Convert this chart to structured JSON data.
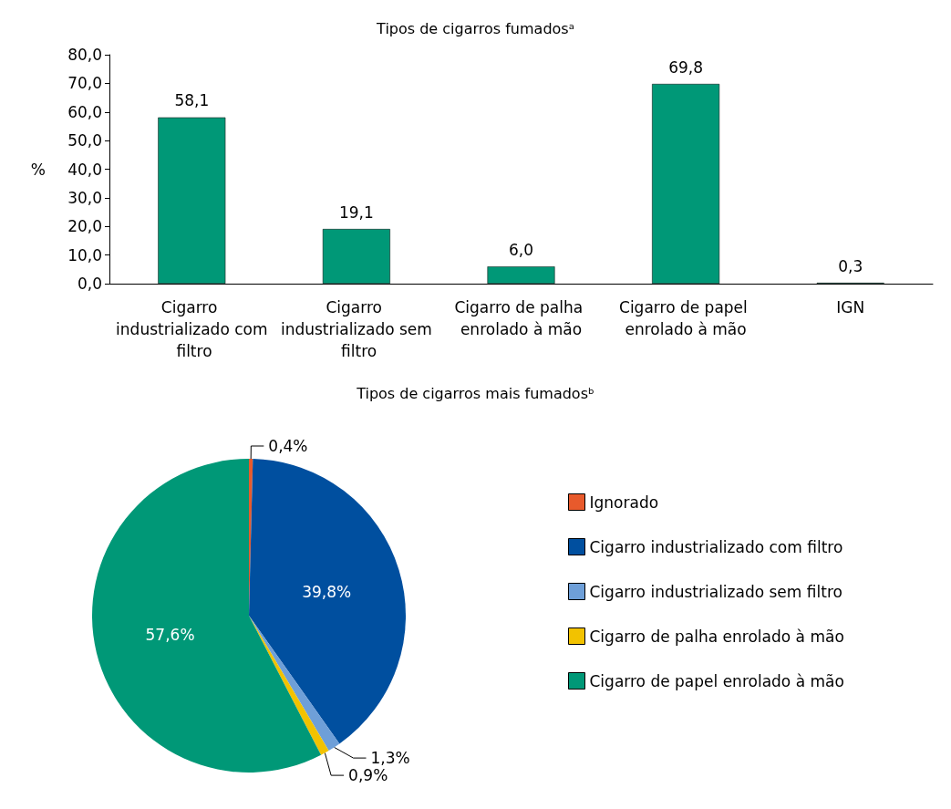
{
  "chart_data": [
    {
      "type": "bar",
      "title": "Tipos de cigarros fumadosᵃ",
      "ylabel": "%",
      "categories": [
        "Cigarro industrializado com filtro",
        "Cigarro industrializado sem filtro",
        "Cigarro de palha enrolado à mão",
        "Cigarro de papel enrolado à mão",
        "IGN"
      ],
      "values": [
        58.1,
        19.1,
        6.0,
        69.8,
        0.3
      ],
      "value_labels": [
        "58,1",
        "19,1",
        "6,0",
        "69,8",
        "0,3"
      ],
      "color": "#009877",
      "ylim": [
        0,
        80
      ],
      "yticks": [
        {
          "value": 0,
          "label": "0,0"
        },
        {
          "value": 10,
          "label": "10,0"
        },
        {
          "value": 20,
          "label": "20,0"
        },
        {
          "value": 30,
          "label": "30,0"
        },
        {
          "value": 40,
          "label": "40,0"
        },
        {
          "value": 50,
          "label": "50,0"
        },
        {
          "value": 60,
          "label": "60,0"
        },
        {
          "value": 70,
          "label": "70,0"
        },
        {
          "value": 80,
          "label": "80,0"
        }
      ],
      "grid": false,
      "legend": false
    },
    {
      "type": "pie",
      "title": "Tipos de cigarros mais fumadosᵇ",
      "categories": [
        "Ignorado",
        "Cigarro industrializado com filtro",
        "Cigarro industrializado sem filtro",
        "Cigarro de palha enrolado à mão",
        "Cigarro de papel enrolado à mão"
      ],
      "values": [
        0.4,
        39.8,
        1.3,
        0.9,
        57.6
      ],
      "value_labels": [
        "0,4%",
        "39,8%",
        "1,3%",
        "0,9%",
        "57,6%"
      ],
      "colors": [
        "#e85a2c",
        "#004f9f",
        "#6e9fd8",
        "#f2c200",
        "#009877"
      ],
      "legend": "right"
    }
  ]
}
